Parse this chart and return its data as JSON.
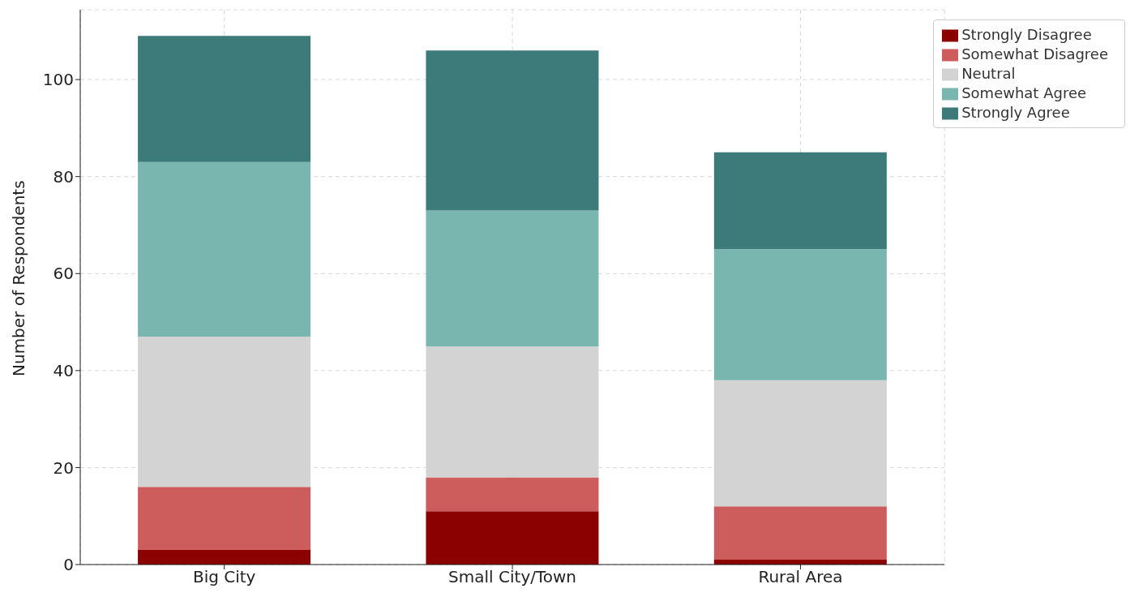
{
  "chart_data": {
    "type": "bar",
    "stacked": true,
    "ylabel": "Number of Respondents",
    "categories": [
      "Big City",
      "Small City/Town",
      "Rural Area"
    ],
    "series": [
      {
        "name": "Strongly Disagree",
        "color": "#8b0000",
        "values": [
          3,
          11,
          1
        ]
      },
      {
        "name": "Somewhat Disagree",
        "color": "#cd5c5c",
        "values": [
          13,
          7,
          11
        ]
      },
      {
        "name": "Neutral",
        "color": "#d3d3d3",
        "values": [
          31,
          27,
          26
        ]
      },
      {
        "name": "Somewhat Agree",
        "color": "#7ab6b0",
        "values": [
          36,
          28,
          27
        ]
      },
      {
        "name": "Strongly Agree",
        "color": "#3d7b7b",
        "values": [
          26,
          33,
          20
        ]
      }
    ],
    "ylim": [
      0,
      114.4
    ],
    "yticks": [
      0,
      20,
      40,
      60,
      80,
      100
    ],
    "grid": true,
    "legend": "top right"
  }
}
